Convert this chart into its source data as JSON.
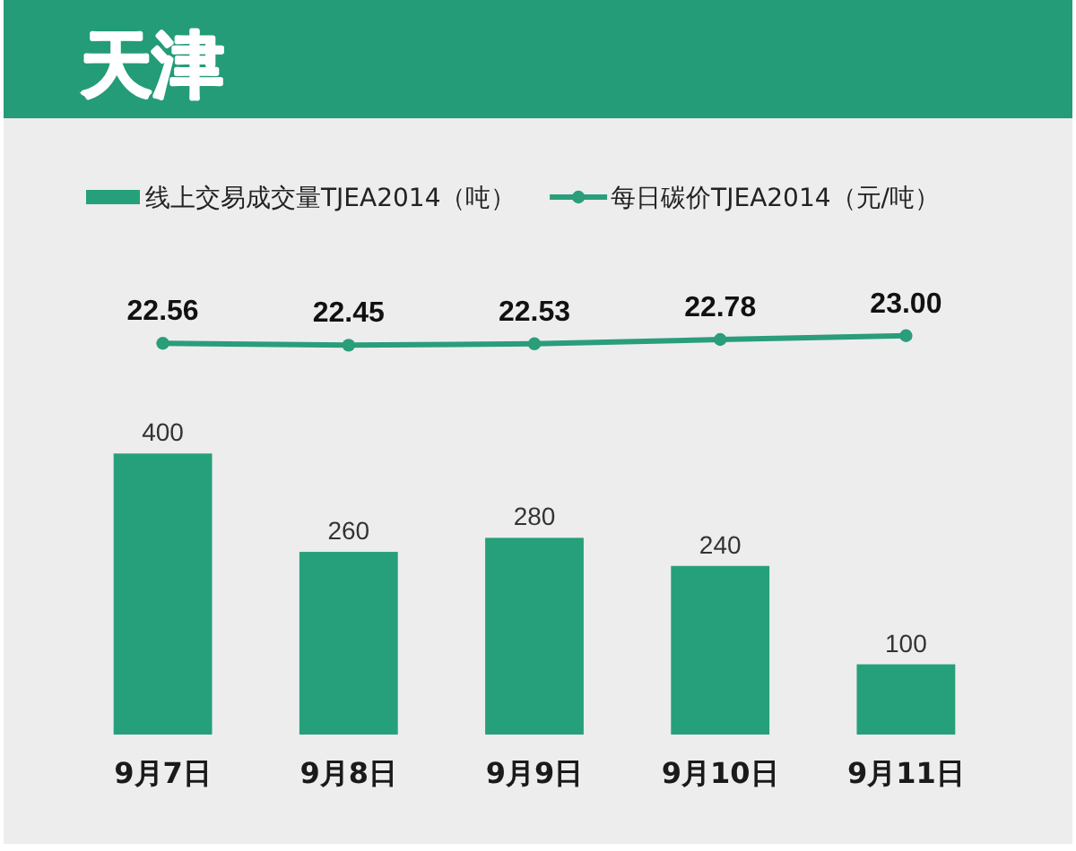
{
  "chart_data": [
    {
      "type": "line",
      "title": "天津",
      "categories": [
        null,
        null,
        null,
        null,
        null
      ],
      "series": [
        {
          "name": "每日碳价TJEA2014（元/吨）",
          "color": "#2a9d7a",
          "values": [
            22.56,
            22.45,
            22.53,
            22.78,
            23.0
          ],
          "value_labels": [
            "22.56",
            "22.45",
            "22.53",
            "22.78",
            "23.00"
          ]
        }
      ],
      "marker": "circle",
      "legend": "top right"
    },
    {
      "type": "bar",
      "categories": [
        "9月7日",
        "9月8日",
        "9月9日",
        "9月10日",
        "9月11日"
      ],
      "series": [
        {
          "name": "线上交易成交量TJEA2014（吨）",
          "color": "#26a07a",
          "values": [
            400,
            260,
            280,
            240,
            100
          ],
          "value_labels": [
            "400",
            "260",
            "280",
            "240",
            "100"
          ]
        }
      ],
      "legend": "top left"
    }
  ]
}
